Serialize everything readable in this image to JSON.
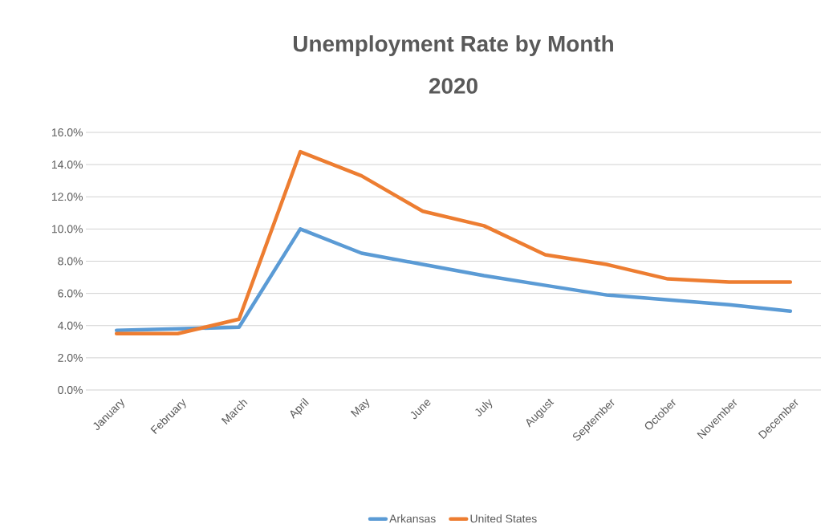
{
  "chart_data": {
    "type": "line",
    "title": "Unemployment Rate by Month",
    "subtitle": "2020",
    "categories": [
      "January",
      "February",
      "March",
      "April",
      "May",
      "June",
      "July",
      "August",
      "September",
      "October",
      "November",
      "December"
    ],
    "series": [
      {
        "name": "Arkansas",
        "color": "#5b9bd5",
        "values": [
          3.7,
          3.8,
          3.9,
          10.0,
          8.5,
          7.8,
          7.1,
          6.5,
          5.9,
          5.6,
          5.3,
          4.9
        ]
      },
      {
        "name": "United States",
        "color": "#ed7d31",
        "values": [
          3.5,
          3.5,
          4.4,
          14.8,
          13.3,
          11.1,
          10.2,
          8.4,
          7.8,
          6.9,
          6.7,
          6.7
        ]
      }
    ],
    "ylim": [
      0,
      16
    ],
    "yticks": [
      {
        "value": 0,
        "label": "0.0%"
      },
      {
        "value": 2,
        "label": "2.0%"
      },
      {
        "value": 4,
        "label": "4.0%"
      },
      {
        "value": 6,
        "label": "6.0%"
      },
      {
        "value": 8,
        "label": "8.0%"
      },
      {
        "value": 10,
        "label": "10.0%"
      },
      {
        "value": 12,
        "label": "12.0%"
      },
      {
        "value": 14,
        "label": "14.0%"
      },
      {
        "value": 16,
        "label": "16.0%"
      }
    ],
    "grid": "y",
    "legend": "bottom",
    "marker": "none",
    "line_style": "solid"
  }
}
